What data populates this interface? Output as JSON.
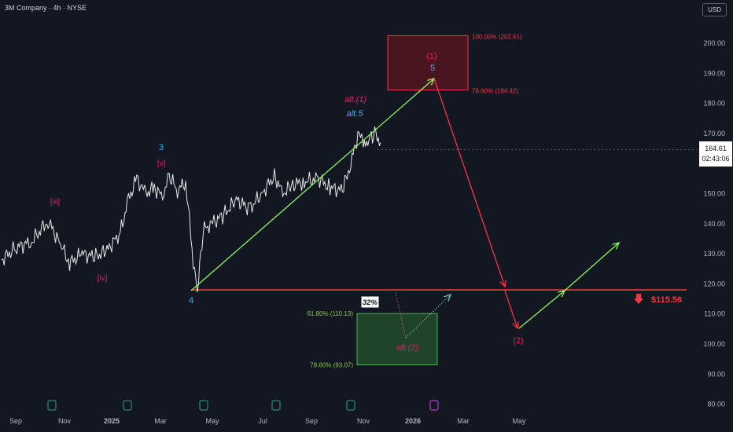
{
  "header": {
    "title": "3M Company · 4h · NYSE",
    "currency": "USD"
  },
  "price_box": {
    "price": "164.61",
    "countdown": "02:43:06"
  },
  "chart_data": {
    "type": "line",
    "title": "3M Company · 4h · NYSE",
    "ylim": [
      78,
      212
    ],
    "y_ticks": [
      "200.00",
      "190.00",
      "180.00",
      "170.00",
      "160.00",
      "150.00",
      "140.00",
      "130.00",
      "120.00",
      "110.00",
      "100.00",
      "90.00",
      "80.00"
    ],
    "y_tick_values": [
      200,
      190,
      180,
      170,
      160,
      150,
      140,
      130,
      120,
      110,
      100,
      90,
      80
    ],
    "x_ticks": [
      {
        "label": "Sep",
        "bold": false
      },
      {
        "label": "Nov",
        "bold": false
      },
      {
        "label": "2025",
        "bold": true
      },
      {
        "label": "Mar",
        "bold": false
      },
      {
        "label": "May",
        "bold": false
      },
      {
        "label": "Jul",
        "bold": false
      },
      {
        "label": "Sep",
        "bold": false
      },
      {
        "label": "Nov",
        "bold": false
      },
      {
        "label": "2026",
        "bold": true
      },
      {
        "label": "Mar",
        "bold": false
      },
      {
        "label": "May",
        "bold": false
      }
    ],
    "price_series": {
      "name": "3M Company",
      "x": [
        "2024-08-15",
        "2024-09-01",
        "2024-09-20",
        "2024-10-10",
        "2024-10-25",
        "2024-11-05",
        "2024-11-20",
        "2024-12-05",
        "2024-12-20",
        "2025-01-05",
        "2025-01-15",
        "2025-01-25",
        "2025-02-05",
        "2025-02-15",
        "2025-02-25",
        "2025-03-05",
        "2025-03-15",
        "2025-03-25",
        "2025-04-03",
        "2025-04-08",
        "2025-04-15",
        "2025-04-25",
        "2025-05-10",
        "2025-05-25",
        "2025-06-10",
        "2025-06-25",
        "2025-07-10",
        "2025-07-20",
        "2025-08-01",
        "2025-08-15",
        "2025-09-01",
        "2025-09-15",
        "2025-09-30",
        "2025-10-10",
        "2025-10-20",
        "2025-10-25",
        "2025-11-01",
        "2025-11-08",
        "2025-11-15"
      ],
      "y": [
        128,
        132,
        134,
        141,
        133,
        127,
        130,
        129,
        131,
        137,
        148,
        155,
        150,
        152,
        149,
        156,
        151,
        154,
        128,
        117,
        138,
        140,
        143,
        148,
        145,
        150,
        156,
        150,
        153,
        154,
        155,
        152,
        151,
        160,
        171,
        165,
        168,
        170,
        167
      ]
    },
    "wave_labels": [
      {
        "text": "[iii]",
        "color": "#e91e63"
      },
      {
        "text": "[iv]",
        "color": "#e91e63"
      },
      {
        "text": "3",
        "color": "#29b6f6"
      },
      {
        "text": "[v]",
        "color": "#e91e63"
      },
      {
        "text": "4",
        "color": "#29b6f6"
      },
      {
        "text": "alt.(1)",
        "color": "#e91e63"
      },
      {
        "text": "alt.5",
        "color": "#29b6f6"
      },
      {
        "text": "(1)",
        "color": "#e91e63"
      },
      {
        "text": "5",
        "color": "#29b6f6"
      },
      {
        "text": "(2)",
        "color": "#e91e63"
      },
      {
        "text": "alt.(2)",
        "color": "#e91e63"
      }
    ],
    "fib_upper": {
      "top_label": "100.00% (202.51)",
      "bottom_label": "78.60% (184.42)",
      "top": 202.51,
      "bottom": 184.42,
      "color": "#f23645"
    },
    "fib_lower": {
      "top_label": "61.80% (110.13)",
      "bottom_label": "78.60% (93.07)",
      "top": 110.13,
      "bottom": 93.07,
      "color": "#4caf50"
    },
    "probability": "32%",
    "support_level": 118,
    "target_label": "$115.56",
    "current_price": 164.61
  }
}
